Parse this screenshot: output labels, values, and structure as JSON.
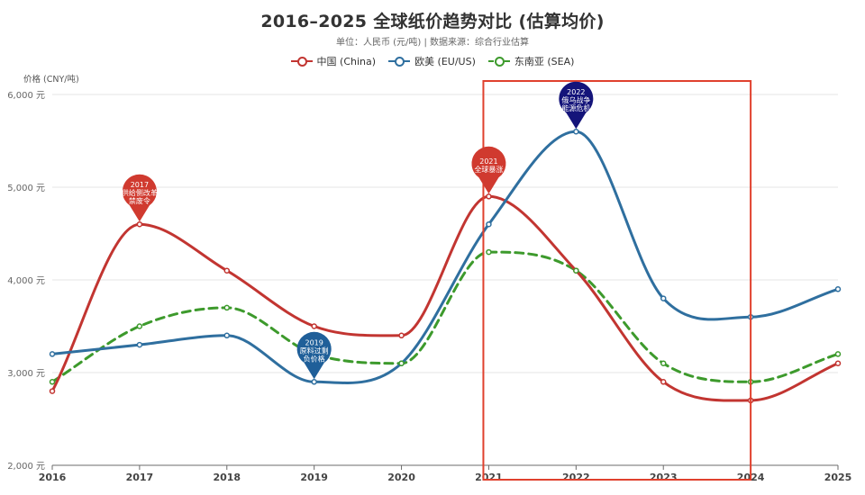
{
  "chart_data": {
    "type": "line",
    "title": "2016–2025 全球纸价趋势对比 (估算均价)",
    "subtitle": "单位：人民币 (元/吨) | 数据来源：综合行业估算",
    "ylabel": "价格 (CNY/吨)",
    "xlabel": "",
    "x": [
      "2016",
      "2017",
      "2018",
      "2019",
      "2020",
      "2021",
      "2022",
      "2023",
      "2024",
      "2025"
    ],
    "ylim": [
      2000,
      6000
    ],
    "yticks": [
      2000,
      3000,
      4000,
      5000,
      6000
    ],
    "ytick_labels": [
      "2,000 元",
      "3,000 元",
      "4,000 元",
      "5,000 元",
      "6,000 元"
    ],
    "grid": true,
    "legend_position": "top",
    "series": [
      {
        "name": "中国 (China)",
        "color": "#c23531",
        "dashed": false,
        "values": [
          2800,
          4600,
          4100,
          3500,
          3400,
          4900,
          4100,
          2900,
          2700,
          3100
        ]
      },
      {
        "name": "欧美 (EU/US)",
        "color": "#2f6f9f",
        "dashed": false,
        "values": [
          3200,
          3300,
          3400,
          2900,
          3100,
          4600,
          5600,
          3800,
          3600,
          3900
        ]
      },
      {
        "name": "东南亚 (SEA)",
        "color": "#3d9a2c",
        "dashed": true,
        "values": [
          2900,
          3500,
          3700,
          3200,
          3100,
          4300,
          4100,
          3100,
          2900,
          3200
        ]
      }
    ],
    "annotations": [
      {
        "year": "2017",
        "text": [
          "2017",
          "供给侧改革",
          "禁废令"
        ],
        "color": "#d03a2f",
        "series": 0
      },
      {
        "year": "2019",
        "text": [
          "2019",
          "原料过剩",
          "负价格"
        ],
        "color": "#1f5f99",
        "series": 1
      },
      {
        "year": "2021",
        "text": [
          "2021",
          "全球暴涨"
        ],
        "color": "#d03a2f",
        "series": 0
      },
      {
        "year": "2022",
        "text": [
          "2022",
          "俄乌战争",
          "能源危机"
        ],
        "color": "#14147a",
        "series": 1
      }
    ],
    "highlight_range": [
      "2021",
      "2024"
    ],
    "highlight_color": "#e0412e"
  }
}
